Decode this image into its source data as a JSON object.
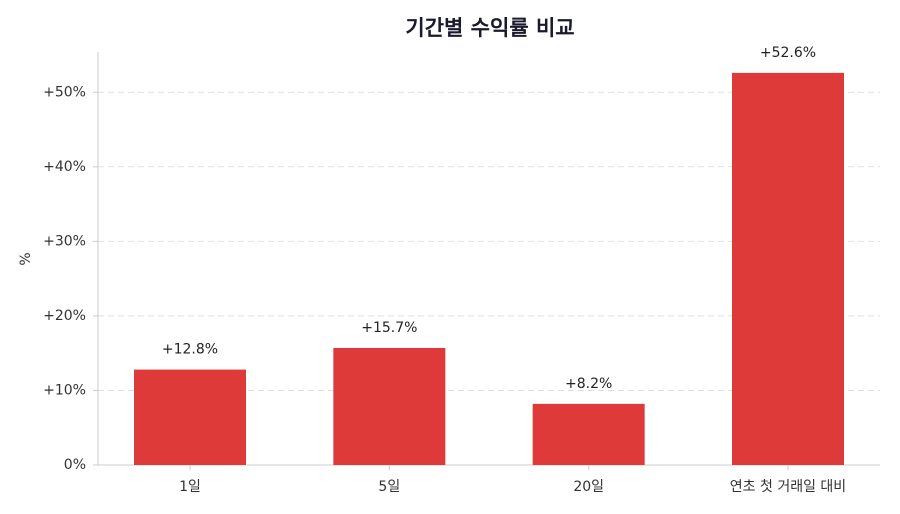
{
  "chart_data": {
    "type": "bar",
    "title": "기간별 수익률 비교",
    "ylabel": "%",
    "categories": [
      "1일",
      "5일",
      "20일",
      "연초 첫 거래일 대비"
    ],
    "values": [
      12.8,
      15.7,
      8.2,
      52.6
    ],
    "value_labels": [
      "+12.8%",
      "+15.7%",
      "+8.2%",
      "+52.6%"
    ],
    "color": "#de3a3a",
    "ylim": [
      0,
      55.4
    ],
    "yticks": [
      {
        "value": 0,
        "label": "0%"
      },
      {
        "value": 10,
        "label": "+10%"
      },
      {
        "value": 20,
        "label": "+20%"
      },
      {
        "value": 30,
        "label": "+30%"
      },
      {
        "value": 40,
        "label": "+40%"
      },
      {
        "value": 50,
        "label": "+50%"
      }
    ],
    "grid": true
  }
}
